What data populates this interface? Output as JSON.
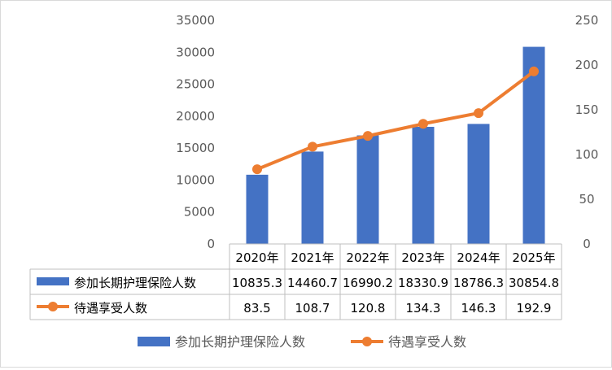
{
  "chart_data": {
    "type": "bar",
    "categories": [
      "2020年",
      "2021年",
      "2022年",
      "2023年",
      "2024年",
      "2025年"
    ],
    "series": [
      {
        "name": "参加长期护理保险人数",
        "kind": "bar",
        "axis": "left",
        "color": "#4472C4",
        "values": [
          10835.3,
          14460.7,
          16990.2,
          18330.9,
          18786.3,
          30854.8
        ],
        "labels": [
          "10835.3",
          "14460.7",
          "16990.2",
          "18330.9",
          "18786.3",
          "30854.8"
        ]
      },
      {
        "name": "待遇享受人数",
        "kind": "line",
        "axis": "right",
        "color": "#ED7D31",
        "values": [
          83.5,
          108.7,
          120.8,
          134.3,
          146.3,
          192.9
        ],
        "labels": [
          "83.5",
          "108.7",
          "120.8",
          "134.3",
          "146.3",
          "192.9"
        ]
      }
    ],
    "y_left": {
      "min": 0,
      "max": 35000,
      "ticks": [
        "0",
        "5000",
        "10000",
        "15000",
        "20000",
        "25000",
        "30000",
        "35000"
      ]
    },
    "y_right": {
      "min": 0,
      "max": 250,
      "ticks": [
        "0",
        "50",
        "100",
        "150",
        "200",
        "250"
      ]
    },
    "data_table": true,
    "legend_position": "bottom",
    "grid": false
  }
}
